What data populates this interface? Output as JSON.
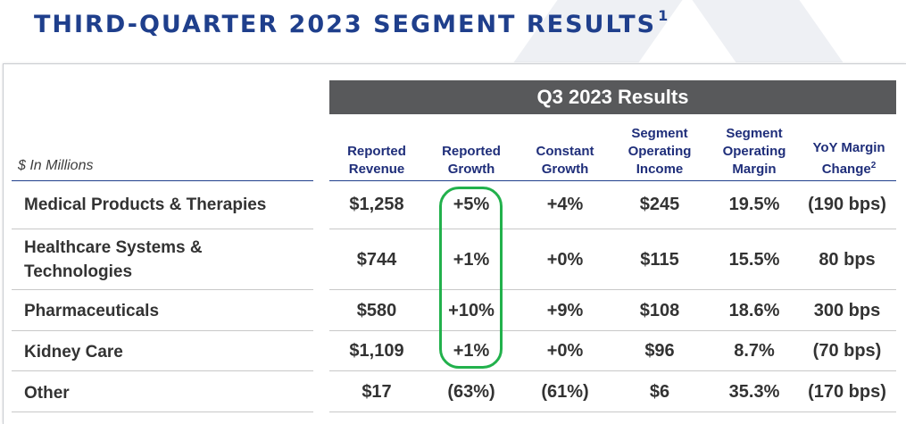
{
  "title": "THIRD-QUARTER 2023 SEGMENT RESULTS",
  "title_footnote": "1",
  "table": {
    "group_header": "Q3 2023 Results",
    "units_label": "$ In Millions",
    "columns": [
      {
        "line1": "",
        "line2": "Reported",
        "line3": "Revenue"
      },
      {
        "line1": "",
        "line2": "Reported",
        "line3": "Growth"
      },
      {
        "line1": "",
        "line2": "Constant",
        "line3": "Growth"
      },
      {
        "line1": "Segment",
        "line2": "Operating",
        "line3": "Income"
      },
      {
        "line1": "Segment",
        "line2": "Operating",
        "line3": "Margin"
      },
      {
        "line1": "",
        "line2": "YoY Margin",
        "line3": "Change",
        "footnote": "2"
      }
    ],
    "rows": [
      {
        "label": "Medical Products & Therapies",
        "values": [
          "$1,258",
          "+5%",
          "+4%",
          "$245",
          "19.5%",
          "(190 bps)"
        ]
      },
      {
        "label_line1": "Healthcare Systems &",
        "label_line2": "Technologies",
        "values": [
          "$744",
          "+1%",
          "+0%",
          "$115",
          "15.5%",
          "80 bps"
        ]
      },
      {
        "label": "Pharmaceuticals",
        "values": [
          "$580",
          "+10%",
          "+9%",
          "$108",
          "18.6%",
          "300 bps"
        ]
      },
      {
        "label": "Kidney Care",
        "values": [
          "$1,109",
          "+1%",
          "+0%",
          "$96",
          "8.7%",
          "(70 bps)"
        ]
      },
      {
        "label": "Other",
        "values": [
          "$17",
          "(63%)",
          "(61%)",
          "$6",
          "35.3%",
          "(170 bps)"
        ]
      }
    ]
  },
  "colors": {
    "title": "#1f3f8c",
    "header_bg": "#58595b",
    "column_header": "#1f2e7a",
    "highlight": "#22b14c"
  }
}
